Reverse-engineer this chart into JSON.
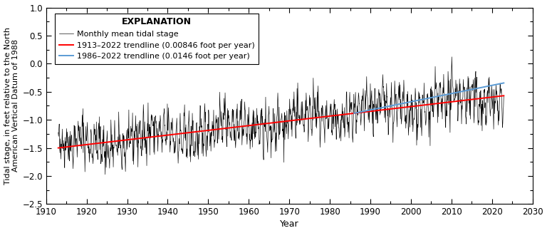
{
  "title": "EXPLANATION",
  "xlabel": "Year",
  "ylabel": "Tidal stage, in feet relative to the North\nAmerican Vertical Datum of 1988",
  "xlim": [
    1910,
    2030
  ],
  "ylim": [
    -2.5,
    1.0
  ],
  "xticks": [
    1910,
    1920,
    1930,
    1940,
    1950,
    1960,
    1970,
    1980,
    1990,
    2000,
    2010,
    2020,
    2030
  ],
  "yticks": [
    -2.5,
    -2.0,
    -1.5,
    -1.0,
    -0.5,
    0.0,
    0.5,
    1.0
  ],
  "trend1_label": "1913–2022 trendline (0.00846 foot per year)",
  "trend2_label": "1986–2022 trendline (0.0146 foot per year)",
  "data_label": "Monthly mean tidal stage",
  "trend1_color": "#ff0000",
  "trend2_color": "#5b9bd5",
  "data_color": "#000000",
  "trend1_start_year": 1913,
  "trend1_end_year": 2022,
  "trend1_slope": 0.00846,
  "trend1_intercept_at_1913": -1.5,
  "trend2_start_year": 1986,
  "trend2_end_year": 2022,
  "trend2_slope": 0.0146,
  "noise_seed": 42,
  "noise_std": 0.18,
  "seasonal_amp": 0.22,
  "background_color": "#ffffff",
  "figwidth": 7.68,
  "figheight": 3.27,
  "dpi": 100
}
